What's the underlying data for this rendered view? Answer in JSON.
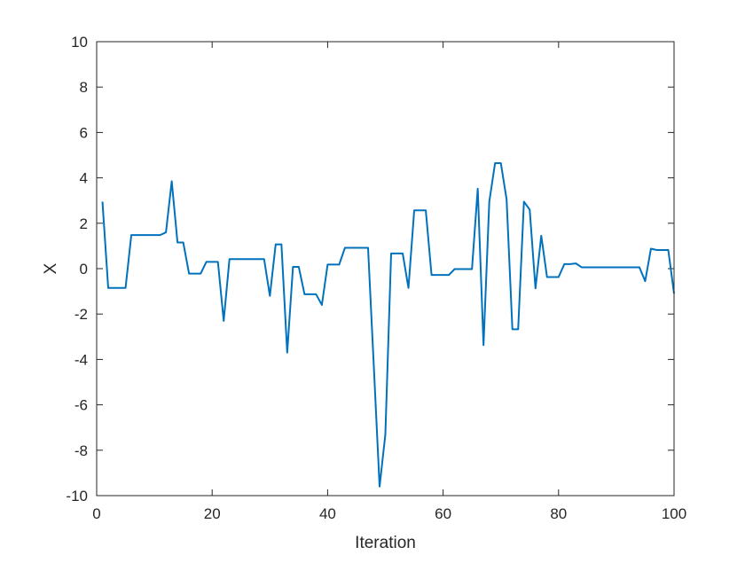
{
  "chart_data": {
    "type": "line",
    "xlabel": "Iteration",
    "ylabel": "X",
    "xlim": [
      0,
      100
    ],
    "ylim": [
      -10,
      10
    ],
    "xticks": [
      0,
      20,
      40,
      60,
      80,
      100
    ],
    "yticks": [
      -10,
      -8,
      -6,
      -4,
      -2,
      0,
      2,
      4,
      6,
      8,
      10
    ],
    "grid": false,
    "line_color": "#0072BD",
    "series": [
      {
        "x": [
          1,
          2,
          3,
          4,
          5,
          6,
          7,
          8,
          9,
          10,
          11,
          12,
          13,
          14,
          15,
          16,
          17,
          18,
          19,
          20,
          21,
          22,
          23,
          24,
          25,
          26,
          27,
          28,
          29,
          30,
          31,
          32,
          33,
          34,
          35,
          36,
          37,
          38,
          39,
          40,
          41,
          42,
          43,
          44,
          45,
          46,
          47,
          48,
          49,
          50,
          51,
          52,
          53,
          54,
          55,
          56,
          57,
          58,
          59,
          60,
          61,
          62,
          63,
          64,
          65,
          66,
          67,
          68,
          69,
          70,
          71,
          72,
          73,
          74,
          75,
          76,
          77,
          78,
          79,
          80,
          81,
          82,
          83,
          84,
          85,
          86,
          87,
          88,
          89,
          90,
          91,
          92,
          93,
          94,
          95,
          96,
          97,
          98,
          99,
          100
        ],
        "y": [
          2.95,
          -0.85,
          -0.85,
          -0.85,
          -0.85,
          1.48,
          1.48,
          1.48,
          1.48,
          1.48,
          1.48,
          1.6,
          3.85,
          1.15,
          1.15,
          -0.22,
          -0.22,
          -0.22,
          0.3,
          0.3,
          0.3,
          -2.3,
          0.42,
          0.42,
          0.42,
          0.42,
          0.42,
          0.42,
          0.42,
          -1.2,
          1.07,
          1.07,
          -3.7,
          0.08,
          0.08,
          -1.13,
          -1.13,
          -1.13,
          -1.6,
          0.18,
          0.18,
          0.18,
          0.92,
          0.92,
          0.92,
          0.92,
          0.92,
          -4.3,
          -9.6,
          -7.3,
          0.67,
          0.67,
          0.67,
          -0.85,
          2.57,
          2.57,
          2.57,
          -0.28,
          -0.28,
          -0.28,
          -0.28,
          -0.02,
          -0.02,
          -0.02,
          -0.02,
          3.52,
          -3.37,
          2.95,
          4.65,
          4.65,
          3.05,
          -2.67,
          -2.67,
          2.95,
          2.6,
          -0.87,
          1.45,
          -0.37,
          -0.37,
          -0.37,
          0.2,
          0.2,
          0.23,
          0.06,
          0.06,
          0.06,
          0.06,
          0.06,
          0.06,
          0.06,
          0.06,
          0.06,
          0.06,
          0.06,
          -0.55,
          0.88,
          0.82,
          0.82,
          0.82,
          -1.1
        ]
      }
    ]
  }
}
